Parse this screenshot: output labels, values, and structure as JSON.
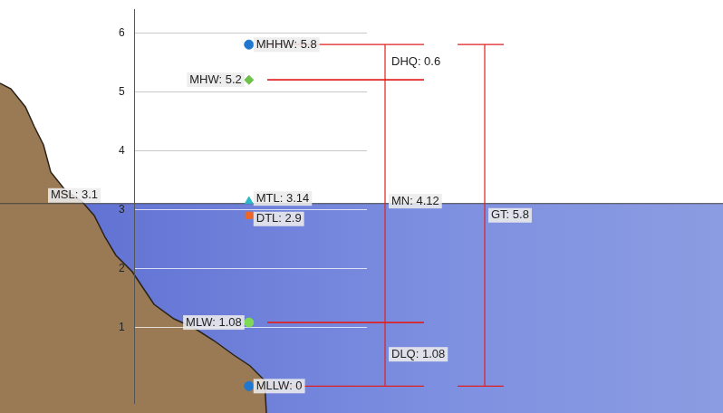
{
  "chart_data": {
    "type": "scatter",
    "ylim": [
      -0.3,
      6.4
    ],
    "yticks": [
      1,
      2,
      3,
      4,
      5,
      6
    ],
    "grid": true,
    "tick_labels": "y",
    "water_level": {
      "label": "MSL: 3.1",
      "value": 3.1
    },
    "datums": [
      {
        "label": "MHHW: 5.8",
        "value": 5.8,
        "color": "#1f77d0",
        "marker": "circle"
      },
      {
        "label": "MHW: 5.2",
        "value": 5.2,
        "color": "#6cc24a",
        "marker": "diamond"
      },
      {
        "label": "MTL: 3.14",
        "value": 3.14,
        "color": "#2bb6c9",
        "marker": "triangle"
      },
      {
        "label": "DTL: 2.9",
        "value": 2.9,
        "color": "#f26522",
        "marker": "square"
      },
      {
        "label": "MLW: 1.08",
        "value": 1.08,
        "color": "#7ed957",
        "marker": "circle"
      },
      {
        "label": "MLLW: 0",
        "value": 0,
        "color": "#1f77d0",
        "marker": "circle"
      }
    ],
    "ranges": [
      {
        "label": "DHQ: 0.6",
        "from": 5.2,
        "to": 5.8
      },
      {
        "label": "MN: 4.12",
        "from": 1.08,
        "to": 5.2
      },
      {
        "label": "DLQ: 1.08",
        "from": 0,
        "to": 1.08
      },
      {
        "label": "GT: 5.8",
        "from": 0,
        "to": 5.8
      }
    ]
  }
}
